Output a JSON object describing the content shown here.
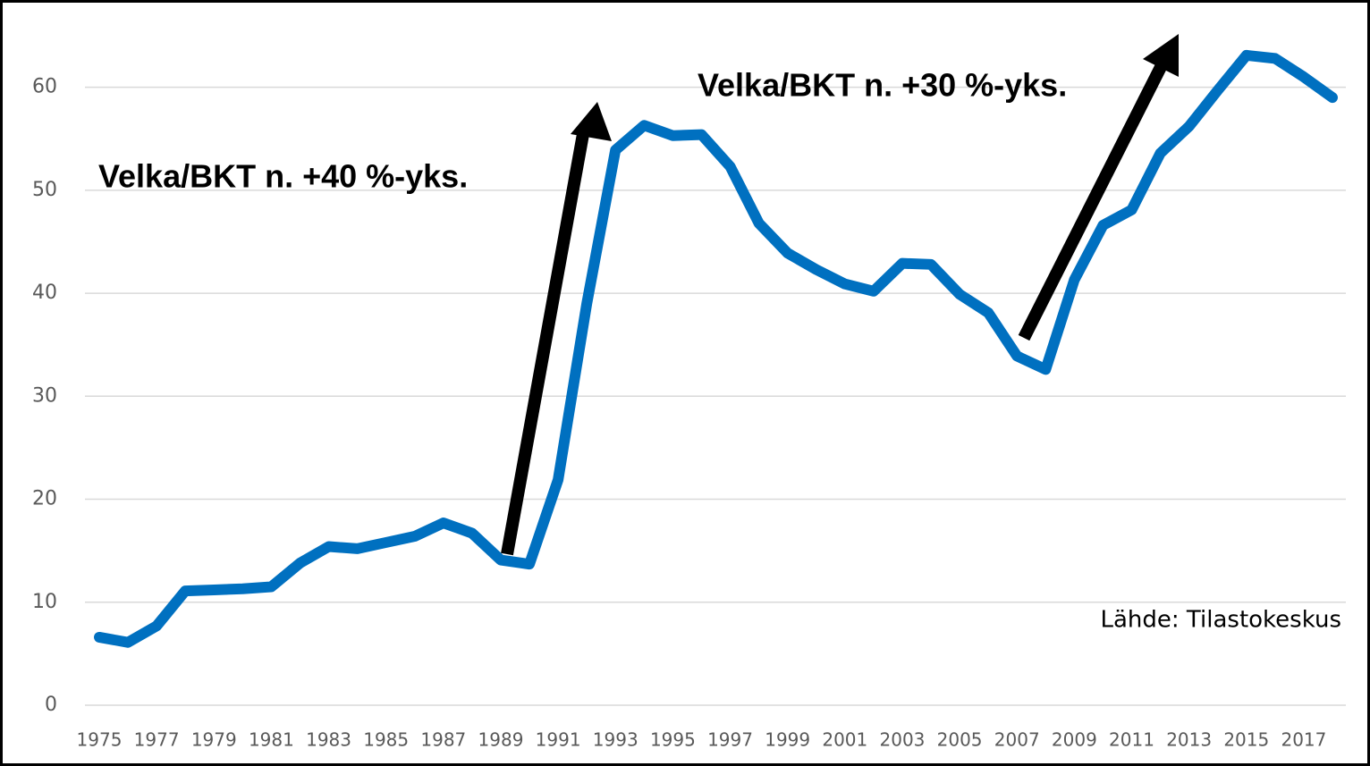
{
  "chart_data": {
    "type": "line",
    "categories": [
      "1975",
      null,
      "1977",
      null,
      "1979",
      null,
      "1981",
      null,
      "1983",
      null,
      "1985",
      null,
      "1987",
      null,
      "1989",
      null,
      "1991",
      null,
      "1993",
      null,
      "1995",
      null,
      "1997",
      null,
      "1999",
      null,
      "2001",
      null,
      "2003",
      null,
      "2005",
      null,
      "2007",
      null,
      "2009",
      null,
      "2011",
      null,
      "2013",
      null,
      "2015",
      null,
      "2017",
      null
    ],
    "series": [
      {
        "color": "#0070c0",
        "values": [
          6.6,
          6.1,
          7.7,
          11.1,
          11.2,
          11.3,
          11.5,
          13.8,
          15.4,
          15.2,
          15.8,
          16.4,
          17.7,
          16.7,
          14.1,
          13.7,
          21.9,
          39.0,
          53.9,
          56.3,
          55.3,
          55.4,
          52.3,
          46.8,
          43.9,
          42.3,
          40.9,
          40.2,
          42.9,
          42.8,
          39.9,
          38.1,
          33.9,
          32.6,
          41.3,
          46.6,
          48.1,
          53.6,
          56.2,
          59.7,
          63.1,
          62.8,
          61.0,
          59.0
        ]
      }
    ],
    "ylim": [
      0,
      65
    ],
    "yticks": [
      0,
      10,
      20,
      30,
      40,
      50,
      60
    ],
    "grid": true,
    "annotations": [
      "Velka/BKT n. +40 %-yks.",
      "Velka/BKT n. +30 %-yks.",
      "Lähde: Tilastokeskus"
    ]
  }
}
